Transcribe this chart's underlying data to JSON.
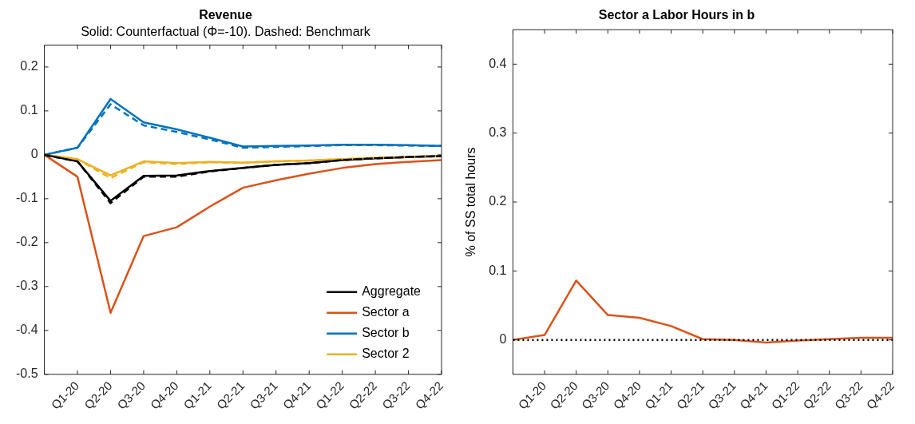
{
  "chart_data": [
    {
      "type": "line",
      "title": "Revenue",
      "subtitle": "Solid: Counterfactual (Φ=-10). Dashed: Benchmark",
      "categories": [
        null,
        "Q1-20",
        "Q2-20",
        "Q3-20",
        "Q4-20",
        "Q1-21",
        "Q2-21",
        "Q3-21",
        "Q4-21",
        "Q1-22",
        "Q2-22",
        "Q3-22",
        "Q4-22"
      ],
      "ylim": [
        -0.5,
        0.25
      ],
      "yticks": [
        -0.5,
        -0.4,
        -0.3,
        -0.2,
        -0.1,
        0,
        0.1,
        0.2
      ],
      "grid": false,
      "legend": "bottom right",
      "marker": "none",
      "series": [
        {
          "color": "#000000",
          "line_style": "dashed",
          "values": [
            0,
            -0.015,
            -0.11,
            -0.05,
            -0.05,
            -0.038,
            -0.03,
            -0.023,
            -0.019,
            -0.012,
            -0.008,
            -0.005,
            -0.003
          ]
        },
        {
          "color": "#0072bd",
          "line_style": "dashed",
          "values": [
            0,
            0.016,
            0.115,
            0.067,
            0.052,
            0.035,
            0.016,
            0.018,
            0.02,
            0.022,
            0.022,
            0.021,
            0.02
          ]
        },
        {
          "color": "#edb120",
          "line_style": "dashed",
          "values": [
            0,
            -0.01,
            -0.053,
            -0.017,
            -0.021,
            -0.017,
            -0.018,
            -0.015,
            -0.013,
            -0.01,
            -0.007,
            -0.005,
            -0.003
          ]
        },
        {
          "name": "Aggregate",
          "color": "#000000",
          "line_style": "solid",
          "values": [
            0,
            -0.015,
            -0.105,
            -0.048,
            -0.047,
            -0.037,
            -0.03,
            -0.023,
            -0.019,
            -0.012,
            -0.008,
            -0.005,
            -0.003
          ]
        },
        {
          "name": "Sector a",
          "color": "#d95319",
          "line_style": "solid",
          "values": [
            0,
            -0.05,
            -0.36,
            -0.185,
            -0.165,
            -0.118,
            -0.075,
            -0.058,
            -0.043,
            -0.03,
            -0.021,
            -0.016,
            -0.012
          ]
        },
        {
          "name": "Sector b",
          "color": "#0072bd",
          "line_style": "solid",
          "values": [
            0,
            0.016,
            0.127,
            0.074,
            0.058,
            0.039,
            0.019,
            0.02,
            0.021,
            0.023,
            0.023,
            0.022,
            0.02
          ]
        },
        {
          "name": "Sector 2",
          "color": "#edb120",
          "line_style": "solid",
          "values": [
            0,
            -0.01,
            -0.047,
            -0.015,
            -0.019,
            -0.016,
            -0.018,
            -0.015,
            -0.013,
            -0.01,
            -0.007,
            -0.005,
            -0.003
          ]
        }
      ]
    },
    {
      "type": "line",
      "title": "Sector a Labor Hours in b",
      "ylabel": "% of SS total hours",
      "categories": [
        null,
        "Q1-20",
        "Q2-20",
        "Q3-20",
        "Q4-20",
        "Q1-21",
        "Q2-21",
        "Q3-21",
        "Q4-21",
        "Q1-22",
        "Q2-22",
        "Q3-22",
        "Q4-22"
      ],
      "ylim": [
        -0.05,
        0.45
      ],
      "yticks": [
        0,
        0.1,
        0.2,
        0.3,
        0.4
      ],
      "grid": false,
      "legend": false,
      "marker": "none",
      "ref_lines": [
        {
          "axis": "y",
          "value": 0,
          "color": "#000000",
          "line_style": "dotted"
        }
      ],
      "series": [
        {
          "color": "#d95319",
          "line_style": "solid",
          "values": [
            0,
            0.007,
            0.086,
            0.036,
            0.032,
            0.02,
            0.001,
            0.0,
            -0.004,
            -0.001,
            0.001,
            0.003,
            0.003
          ]
        }
      ]
    }
  ]
}
